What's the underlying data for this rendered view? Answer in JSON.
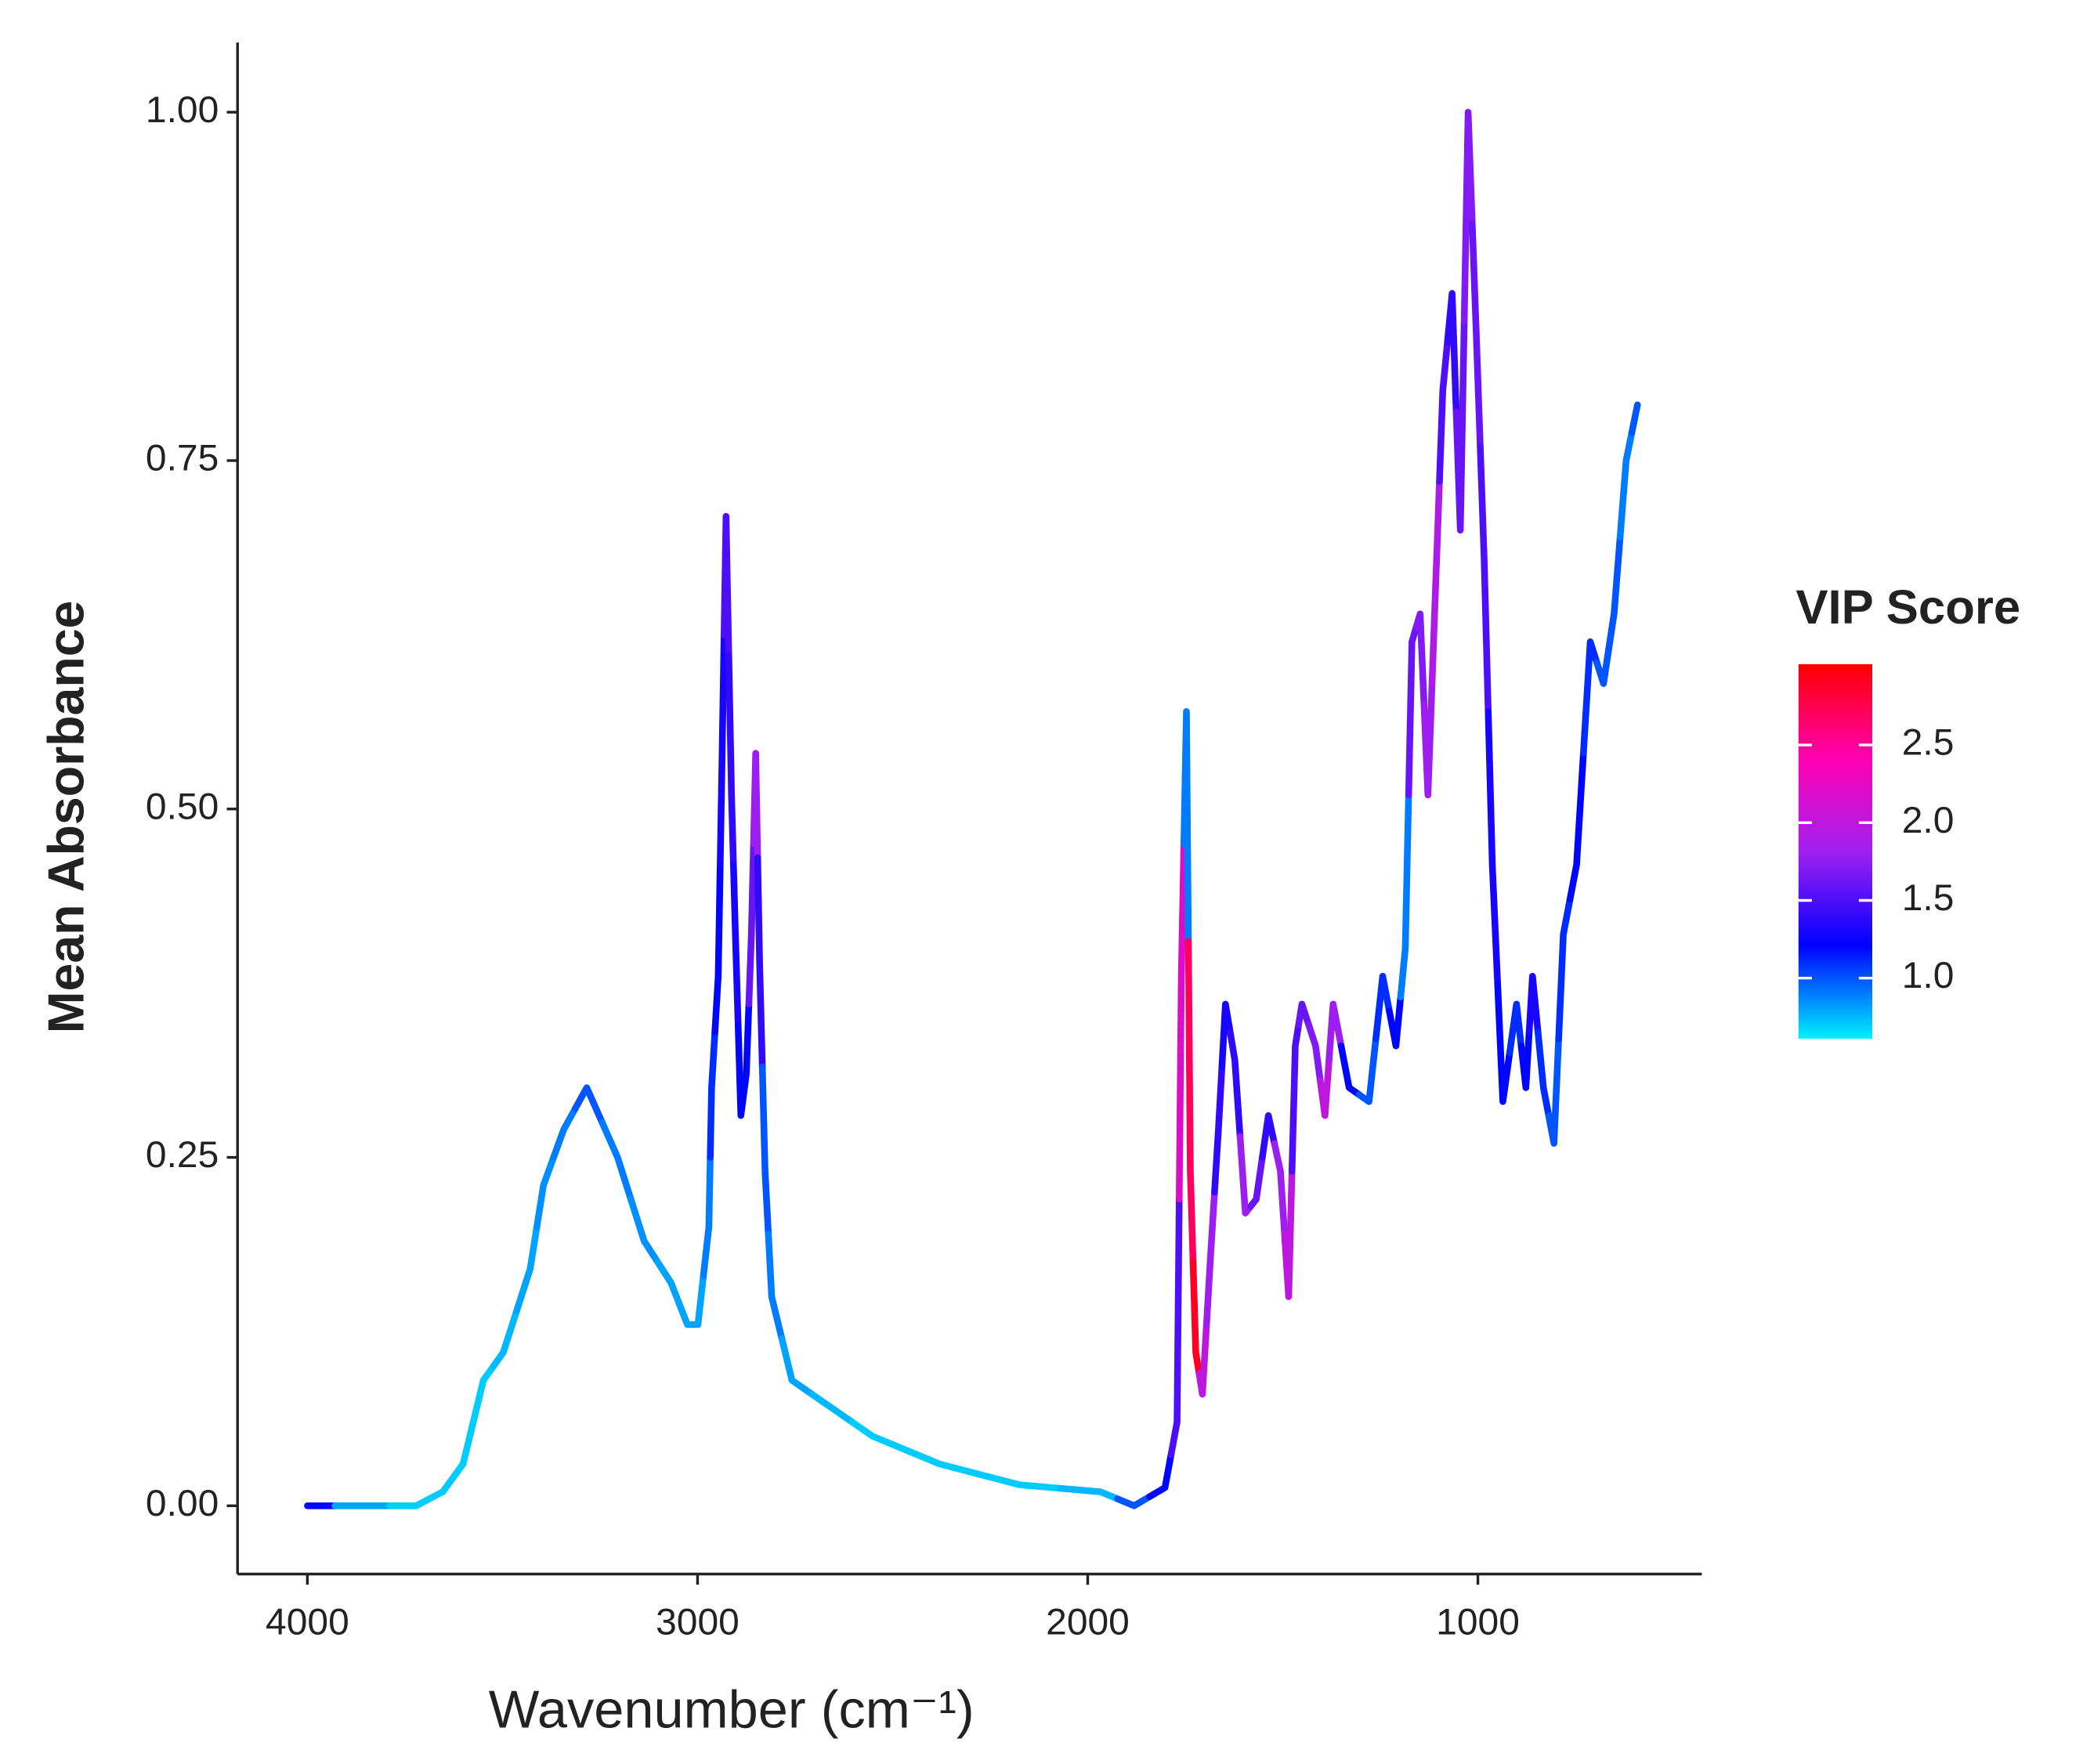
{
  "chart_data": {
    "type": "line",
    "x_label": "Wavenumber (cm⁻¹)",
    "y_label": "Mean Absorbance",
    "xlim": [
      4179,
      426
    ],
    "ylim": [
      -0.049,
      1.05
    ],
    "xticks": [
      4000,
      3000,
      2000,
      1000
    ],
    "yticks": [
      {
        "value": 0,
        "label": "0.00"
      },
      {
        "value": 0.25,
        "label": "0.25"
      },
      {
        "value": 0.5,
        "label": "0.50"
      },
      {
        "value": 0.75,
        "label": "0.75"
      },
      {
        "value": 1,
        "label": "1.00"
      }
    ],
    "color_legend": {
      "title": "VIP Score",
      "colorlim": [
        0.61,
        3.02
      ],
      "colors": [
        "#00f0ff",
        "#0000ff",
        "#a020f0",
        "#ff00b0",
        "#ff0000"
      ],
      "ticks": [
        {
          "value": 1,
          "label": "1.0"
        },
        {
          "value": 1.5,
          "label": "1.5"
        },
        {
          "value": 2,
          "label": "2.0"
        },
        {
          "value": 2.5,
          "label": "2.5"
        }
      ]
    },
    "series": [
      {
        "x": [
          4000,
          3859,
          3721,
          3653,
          3601,
          3549,
          3498,
          3429,
          3395,
          3343,
          3284,
          3205,
          3137,
          3068,
          3026,
          2999,
          2971,
          2964,
          2947,
          2937,
          2927,
          2913,
          2903,
          2889,
          2875,
          2862,
          2851,
          2841,
          2827,
          2810,
          2758,
          2655,
          2552,
          2380,
          2174,
          1967,
          1881,
          1802,
          1771,
          1760,
          1747,
          1737,
          1723,
          1706,
          1685,
          1665,
          1647,
          1623,
          1596,
          1568,
          1537,
          1506,
          1485,
          1468,
          1451,
          1416,
          1392,
          1371,
          1330,
          1279,
          1244,
          1210,
          1186,
          1169,
          1148,
          1128,
          1107,
          1090,
          1066,
          1045,
          1025,
          1004,
          984,
          963,
          936,
          901,
          877,
          860,
          832,
          805,
          781,
          747,
          712,
          678,
          651,
          620,
          591
        ],
        "values": [
          0.0,
          0.0,
          0.0,
          0.01,
          0.03,
          0.09,
          0.11,
          0.17,
          0.23,
          0.27,
          0.3,
          0.25,
          0.19,
          0.16,
          0.13,
          0.13,
          0.2,
          0.3,
          0.38,
          0.54,
          0.71,
          0.51,
          0.41,
          0.28,
          0.31,
          0.41,
          0.54,
          0.39,
          0.24,
          0.15,
          0.09,
          0.07,
          0.05,
          0.03,
          0.015,
          0.01,
          0.0,
          0.013,
          0.06,
          0.38,
          0.57,
          0.24,
          0.11,
          0.08,
          0.18,
          0.27,
          0.36,
          0.32,
          0.21,
          0.22,
          0.28,
          0.24,
          0.15,
          0.33,
          0.36,
          0.33,
          0.28,
          0.36,
          0.3,
          0.29,
          0.38,
          0.33,
          0.4,
          0.62,
          0.64,
          0.51,
          0.67,
          0.8,
          0.87,
          0.7,
          1.0,
          0.84,
          0.68,
          0.46,
          0.29,
          0.36,
          0.3,
          0.38,
          0.3,
          0.26,
          0.41,
          0.46,
          0.62,
          0.59,
          0.64,
          0.75,
          0.79
        ],
        "vip": [
          1.2,
          0.8,
          0.7,
          0.7,
          0.7,
          0.7,
          0.75,
          0.8,
          0.85,
          0.9,
          1.0,
          0.9,
          0.85,
          0.8,
          0.8,
          0.8,
          0.9,
          1.1,
          1.2,
          1.3,
          1.5,
          1.4,
          1.3,
          1.2,
          1.2,
          1.6,
          1.8,
          1.4,
          1.0,
          0.9,
          0.8,
          0.75,
          0.7,
          0.7,
          0.7,
          0.75,
          1.0,
          1.2,
          1.5,
          2.2,
          0.9,
          2.7,
          2.9,
          2.0,
          1.8,
          1.4,
          1.3,
          1.4,
          1.8,
          1.6,
          1.4,
          1.8,
          2.0,
          1.5,
          1.6,
          1.7,
          2.0,
          1.8,
          1.2,
          1.0,
          1.1,
          1.2,
          0.9,
          1.6,
          1.7,
          1.8,
          1.9,
          1.5,
          1.4,
          1.6,
          1.7,
          1.6,
          1.5,
          1.3,
          1.2,
          1.1,
          1.2,
          1.3,
          1.1,
          1.0,
          1.1,
          1.2,
          1.1,
          1.0,
          1.0,
          0.9,
          1.0
        ]
      }
    ]
  }
}
